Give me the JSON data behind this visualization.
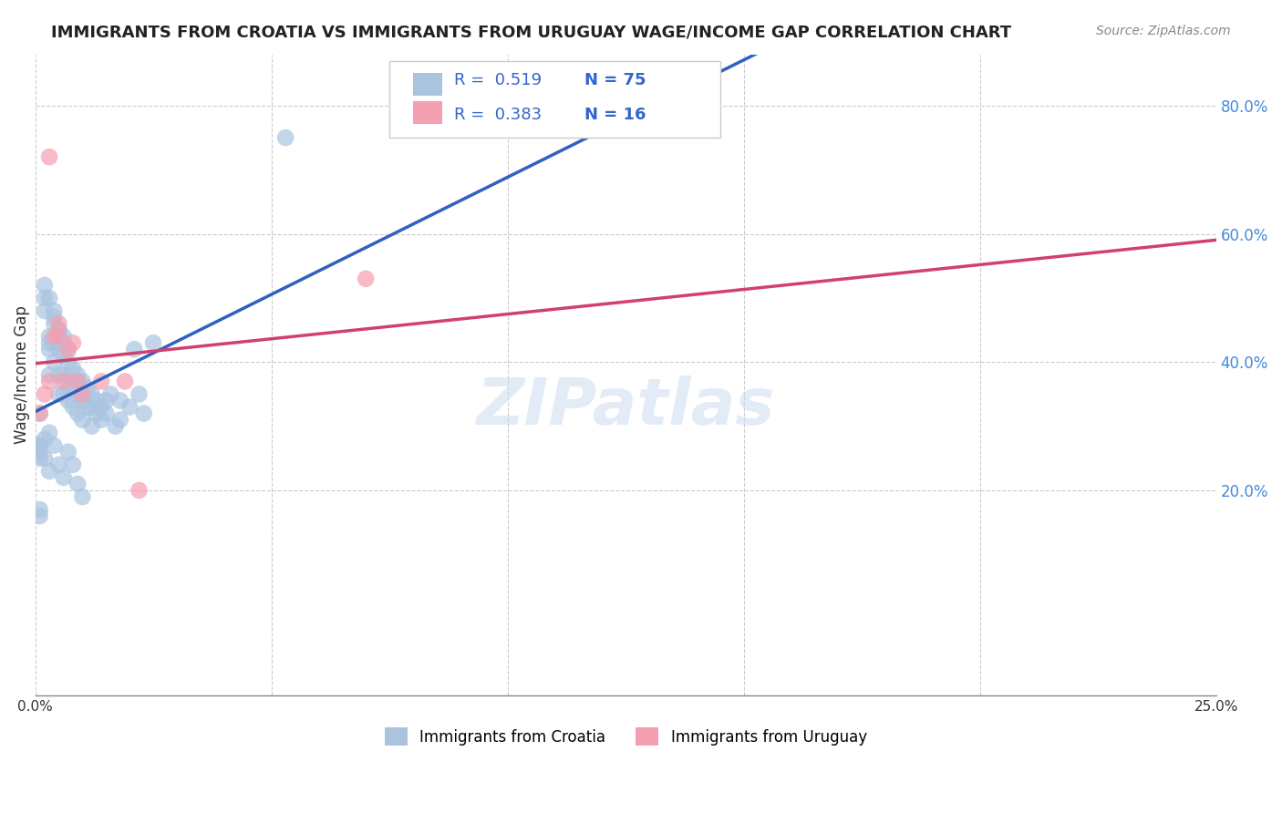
{
  "title": "IMMIGRANTS FROM CROATIA VS IMMIGRANTS FROM URUGUAY WAGE/INCOME GAP CORRELATION CHART",
  "source": "Source: ZipAtlas.com",
  "xlabel_bottom": "",
  "ylabel": "Wage/Income Gap",
  "x_min": 0.0,
  "x_max": 0.25,
  "y_min": -0.12,
  "y_max": 0.88,
  "x_ticks": [
    0.0,
    0.05,
    0.1,
    0.15,
    0.2,
    0.25
  ],
  "x_tick_labels": [
    "0.0%",
    "",
    "",
    "",
    "",
    "25.0%"
  ],
  "y_ticks": [
    0.2,
    0.4,
    0.6,
    0.8
  ],
  "y_tick_labels": [
    "20.0%",
    "40.0%",
    "60.0%",
    "80.0%"
  ],
  "grid_color": "#cccccc",
  "background_color": "#ffffff",
  "color_croatia": "#aac4e0",
  "color_uruguay": "#f4a0b0",
  "line_color_croatia": "#3060c0",
  "line_color_uruguay": "#d04070",
  "R_croatia": 0.519,
  "N_croatia": 75,
  "R_uruguay": 0.383,
  "N_uruguay": 16,
  "legend_label_croatia": "Immigrants from Croatia",
  "legend_label_uruguay": "Immigrants from Uruguay",
  "watermark": "ZIPatlas",
  "croatia_x": [
    0.001,
    0.002,
    0.002,
    0.003,
    0.003,
    0.003,
    0.003,
    0.004,
    0.004,
    0.004,
    0.004,
    0.005,
    0.005,
    0.005,
    0.005,
    0.006,
    0.006,
    0.006,
    0.006,
    0.007,
    0.007,
    0.007,
    0.007,
    0.008,
    0.008,
    0.008,
    0.009,
    0.009,
    0.009,
    0.01,
    0.01,
    0.01,
    0.011,
    0.011,
    0.012,
    0.012,
    0.012,
    0.013,
    0.013,
    0.014,
    0.014,
    0.015,
    0.015,
    0.016,
    0.017,
    0.018,
    0.018,
    0.02,
    0.021,
    0.022,
    0.023,
    0.025,
    0.001,
    0.002,
    0.003,
    0.004,
    0.005,
    0.006,
    0.007,
    0.008,
    0.009,
    0.01,
    0.002,
    0.003,
    0.004,
    0.005,
    0.006,
    0.003,
    0.002,
    0.001,
    0.001,
    0.001,
    0.053,
    0.001,
    0.001
  ],
  "croatia_y": [
    0.32,
    0.5,
    0.48,
    0.44,
    0.43,
    0.42,
    0.38,
    0.48,
    0.46,
    0.43,
    0.4,
    0.45,
    0.42,
    0.38,
    0.35,
    0.44,
    0.41,
    0.38,
    0.35,
    0.42,
    0.4,
    0.37,
    0.34,
    0.39,
    0.36,
    0.33,
    0.38,
    0.35,
    0.32,
    0.37,
    0.34,
    0.31,
    0.36,
    0.33,
    0.35,
    0.33,
    0.3,
    0.34,
    0.32,
    0.33,
    0.31,
    0.34,
    0.32,
    0.35,
    0.3,
    0.34,
    0.31,
    0.33,
    0.42,
    0.35,
    0.32,
    0.43,
    0.27,
    0.25,
    0.23,
    0.27,
    0.24,
    0.22,
    0.26,
    0.24,
    0.21,
    0.19,
    0.52,
    0.5,
    0.47,
    0.45,
    0.43,
    0.29,
    0.28,
    0.27,
    0.26,
    0.25,
    0.75,
    0.17,
    0.16
  ],
  "uruguay_x": [
    0.001,
    0.002,
    0.003,
    0.004,
    0.005,
    0.005,
    0.006,
    0.007,
    0.008,
    0.009,
    0.01,
    0.014,
    0.019,
    0.022,
    0.07,
    0.003
  ],
  "uruguay_y": [
    0.32,
    0.35,
    0.37,
    0.44,
    0.46,
    0.44,
    0.37,
    0.42,
    0.43,
    0.37,
    0.35,
    0.37,
    0.37,
    0.2,
    0.53,
    0.72
  ]
}
